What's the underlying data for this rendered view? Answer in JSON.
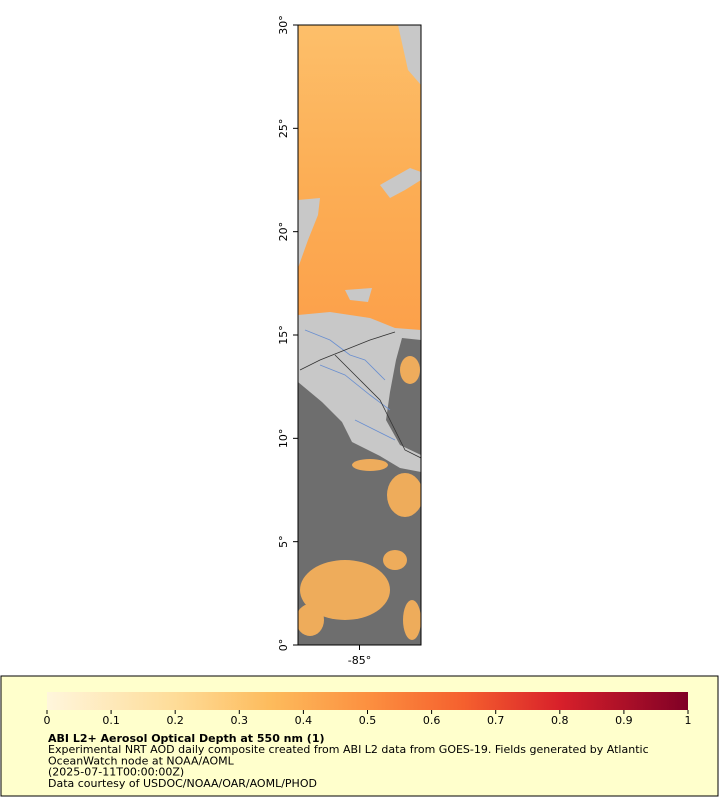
{
  "map": {
    "xlim": [
      -88,
      -82
    ],
    "ylim": [
      0,
      30
    ],
    "xticks": [
      {
        "value": -85,
        "label": "-85°"
      }
    ],
    "yticks": [
      {
        "value": 0,
        "label": "0°"
      },
      {
        "value": 5,
        "label": "5°"
      },
      {
        "value": 10,
        "label": "10°"
      },
      {
        "value": 15,
        "label": "15°"
      },
      {
        "value": 20,
        "label": "20°"
      },
      {
        "value": 25,
        "label": "25°"
      },
      {
        "value": 30,
        "label": "30°"
      }
    ]
  },
  "legend": {
    "lim": [
      0,
      1
    ],
    "ticks": [
      0,
      0.1,
      0.2,
      0.3,
      0.4,
      0.5,
      0.6,
      0.7,
      0.8,
      0.9,
      1
    ],
    "title": "ABI L2+ Aerosol Optical Depth at 550 nm (1)",
    "lines": [
      "Experimental NRT AOD daily composite created from ABI L2 data from GOES-19. Fields generated by Atlantic",
      "OceanWatch node at NOAA/AOML",
      "(2025-07-11T00:00:00Z)",
      "Data courtesy of USDOC/NOAA/OAR/AOML/PHOD"
    ]
  }
}
